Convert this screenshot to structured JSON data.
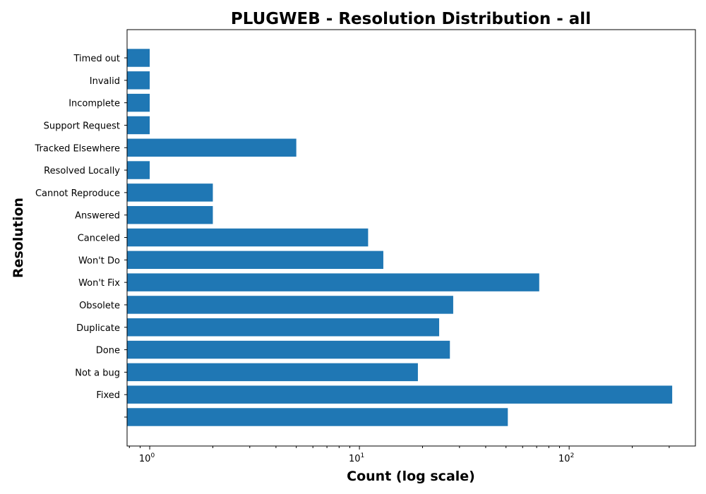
{
  "chart_data": {
    "type": "bar",
    "orientation": "horizontal",
    "title": "PLUGWEB - Resolution Distribution - all",
    "xlabel": "Count (log scale)",
    "ylabel": "Resolution",
    "x_scale": "log",
    "xlim": [
      0.78,
      400
    ],
    "x_ticks": [
      {
        "value": 1,
        "base": "10",
        "exp": "0"
      },
      {
        "value": 10,
        "base": "10",
        "exp": "1"
      },
      {
        "value": 100,
        "base": "10",
        "exp": "2"
      }
    ],
    "categories": [
      "",
      "Fixed",
      "Not a bug",
      "Done",
      "Duplicate",
      "Obsolete",
      "Won't Fix",
      "Won't Do",
      "Canceled",
      "Answered",
      "Cannot Reproduce",
      "Resolved Locally",
      "Tracked Elsewhere",
      "Support Request",
      "Incomplete",
      "Invalid",
      "Timed out"
    ],
    "values": [
      51,
      310,
      19,
      27,
      24,
      28,
      72,
      13,
      11,
      2,
      2,
      1,
      5,
      1,
      1,
      1,
      1
    ],
    "bar_color": "#1f77b4",
    "grid": false,
    "legend": "none"
  }
}
